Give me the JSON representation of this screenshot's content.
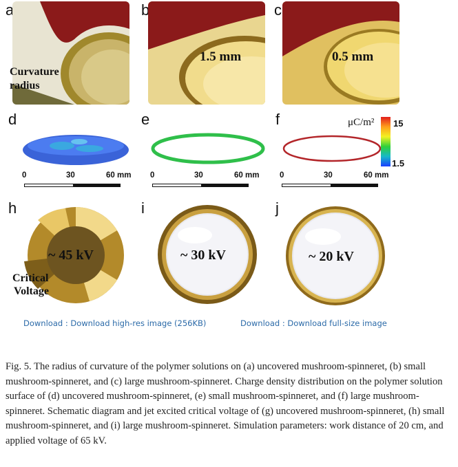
{
  "panels": {
    "a": {
      "label": "a",
      "overlay": [
        "Curvature",
        "radius"
      ]
    },
    "b": {
      "label": "b",
      "overlay": "1.5 mm"
    },
    "c": {
      "label": "c",
      "overlay": "0.5 mm"
    },
    "d": {
      "label": "d"
    },
    "e": {
      "label": "e"
    },
    "f": {
      "label": "f"
    },
    "h": {
      "label": "h",
      "voltage": "~ 45 kV",
      "overlay": [
        "Critical",
        "Voltage"
      ]
    },
    "i": {
      "label": "i",
      "voltage": "~ 30 kV"
    },
    "j": {
      "label": "j",
      "voltage": "~ 20 kV"
    }
  },
  "scale_bar": {
    "ticks": [
      "0",
      "30",
      "60 mm"
    ]
  },
  "colorbar": {
    "unit": "μC/m²",
    "max": "15",
    "min": "1.5",
    "colors": [
      "#d7191c",
      "#fdae61",
      "#ffff33",
      "#33cc33",
      "#2b83ba",
      "#1a1aff"
    ]
  },
  "links": {
    "high_res": "Download : Download high-res image (256KB)",
    "full_size": "Download : Download full-size image"
  },
  "caption": "Fig. 5. The radius of curvature of the polymer solutions on (a) uncovered mushroom-spinneret, (b) small mushroom-spinneret, and (c) large mushroom-spinneret. Charge density distribution on the polymer solution surface of (d) uncovered mushroom-spinneret, (e) small mushroom-spinneret, and (f) large mushroom-spinneret. Schematic diagram and jet excited critical voltage of (g) uncovered mushroom-spinneret, (h) small mushroom-spinneret, and (i) large mushroom-spinneret. Simulation parameters: work distance of 20 cm, and applied voltage of 65 kV."
}
